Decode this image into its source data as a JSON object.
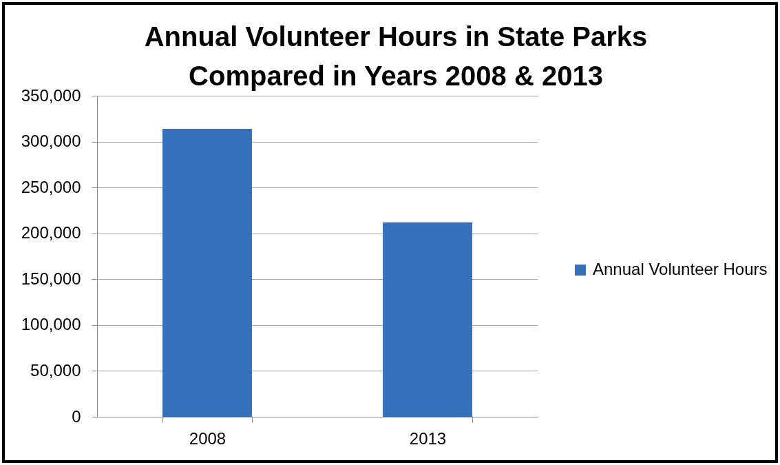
{
  "chart_data": {
    "type": "bar",
    "title": "Annual Volunteer Hours in State Parks\nCompared in Years 2008 & 2013",
    "categories": [
      "2008",
      "2013"
    ],
    "series": [
      {
        "name": "Annual Volunteer Hours",
        "color": "#3670bb",
        "values": [
          314000,
          212000
        ]
      }
    ],
    "ylim": [
      0,
      350000
    ],
    "yticks": [
      0,
      {
        "value": 50000,
        "label": "50,000"
      },
      {
        "value": 100000,
        "label": "100,000"
      },
      {
        "value": 150000,
        "label": "150,000"
      },
      {
        "value": 200000,
        "label": "200,000"
      },
      {
        "value": 250000,
        "label": "250,000"
      },
      {
        "value": 300000,
        "label": "300,000"
      },
      {
        "value": 350000,
        "label": "350,000"
      }
    ],
    "grid": "y",
    "legend": "right"
  }
}
